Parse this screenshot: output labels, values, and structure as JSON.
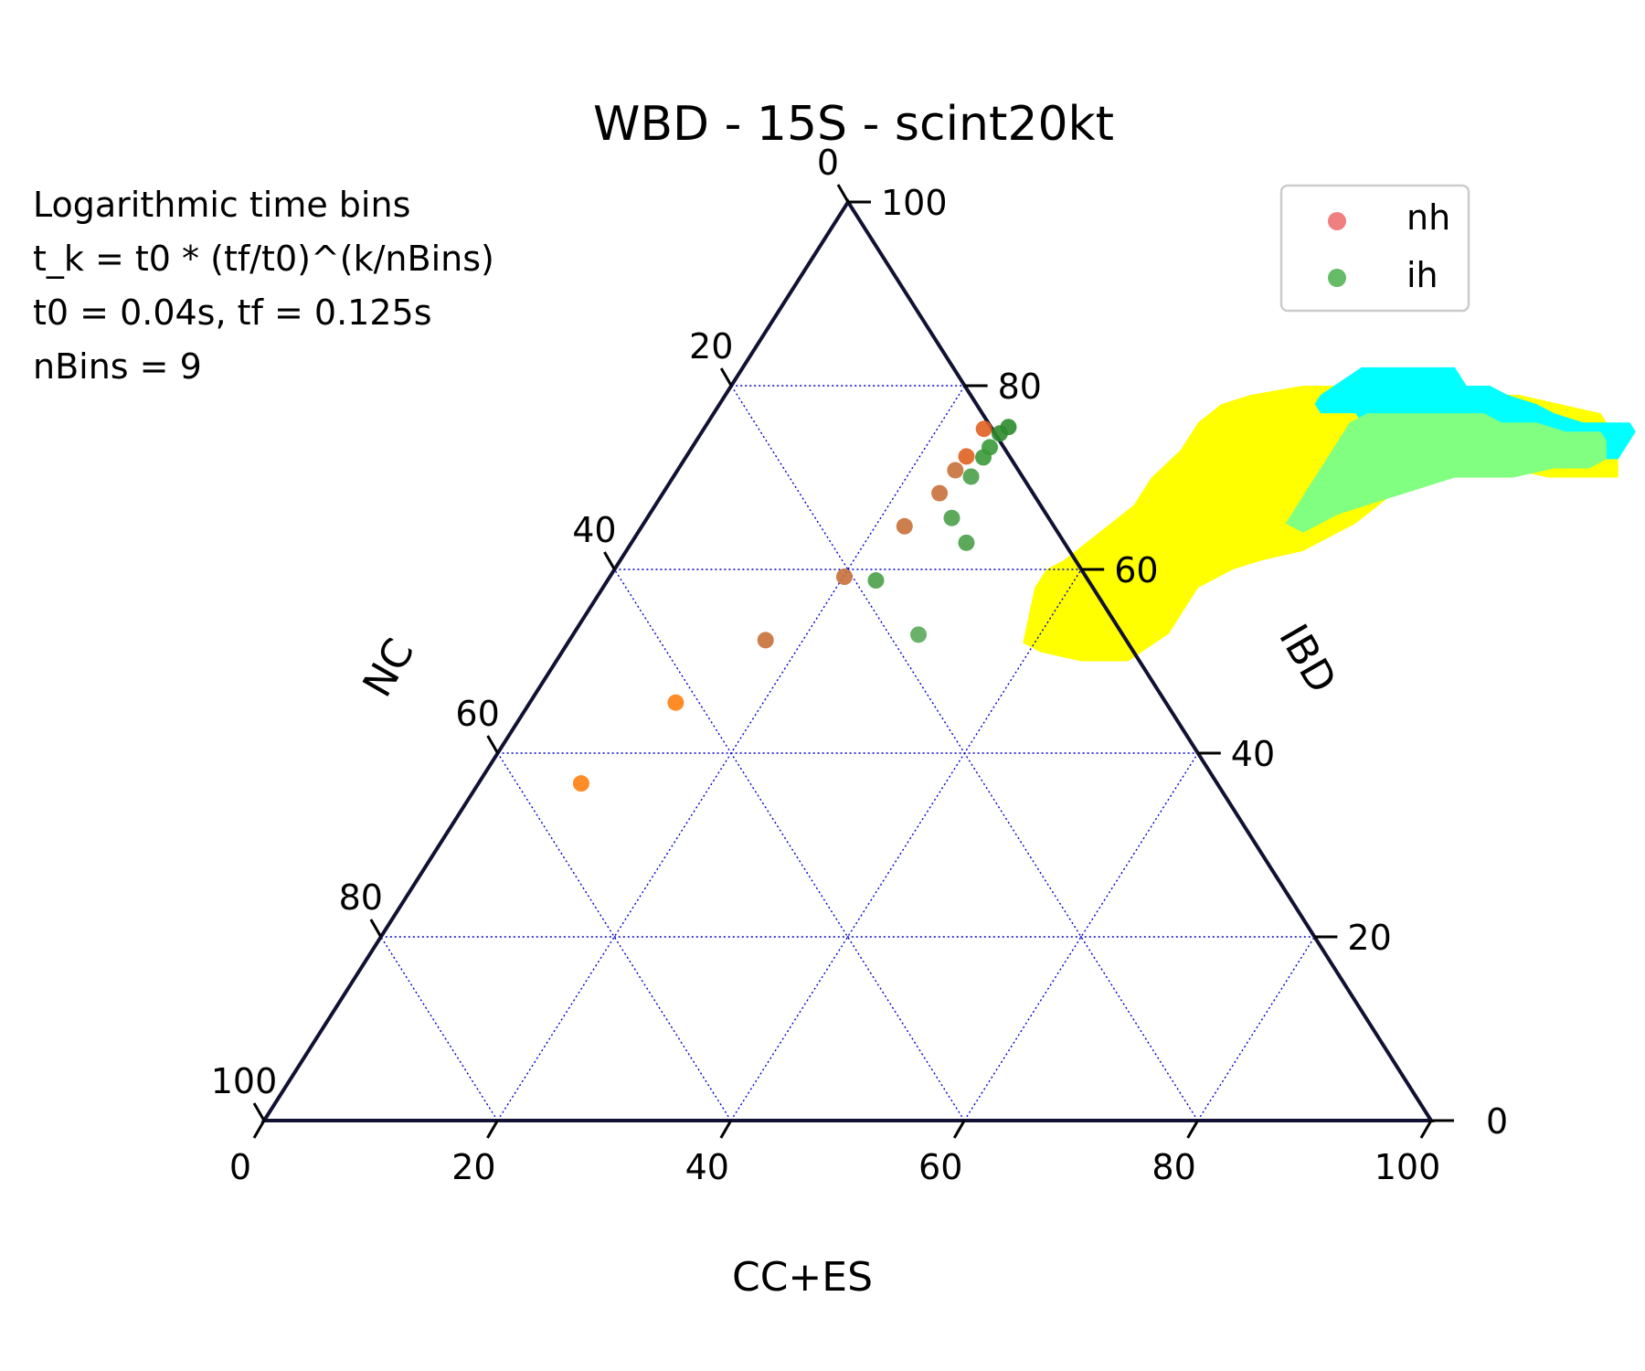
{
  "chart_data": {
    "type": "scatter",
    "subtype": "ternary",
    "title": "WBD - 15S - scint20kt",
    "annotation_lines": [
      "Logarithmic time bins",
      "t_k = t0 * (tf/t0)^(k/nBins)",
      "t0 = 0.04s, tf = 0.125s",
      "nBins = 9"
    ],
    "axes": {
      "bottom": {
        "label": "CC+ES",
        "ticks": [
          "0",
          "20",
          "40",
          "60",
          "80",
          "100"
        ]
      },
      "right": {
        "label": "IBD",
        "ticks": [
          "0",
          "20",
          "40",
          "60",
          "80",
          "100"
        ]
      },
      "left": {
        "label": "NC",
        "ticks": [
          "0",
          "20",
          "40",
          "60",
          "80",
          "100"
        ]
      }
    },
    "grid": true,
    "grid_color": "#0000cc",
    "legend": {
      "placement": "top-right",
      "entries": [
        {
          "name": "nh",
          "color": "#f08080"
        },
        {
          "name": "ih",
          "color": "#66bb66"
        }
      ]
    },
    "regions": [
      {
        "color": "#ffff00",
        "polygon": [
          [
            70,
            81
          ],
          [
            74,
            79
          ],
          [
            77,
            76
          ],
          [
            78,
            72
          ],
          [
            79,
            68
          ],
          [
            79,
            64
          ],
          [
            80,
            61
          ],
          [
            80,
            55
          ],
          [
            80,
            49
          ],
          [
            79,
            45
          ],
          [
            78,
            43
          ],
          [
            76,
            42
          ],
          [
            73,
            42
          ],
          [
            70,
            41
          ],
          [
            67,
            41
          ],
          [
            65,
            40
          ],
          [
            61,
            38
          ],
          [
            60,
            37
          ],
          [
            58,
            37
          ],
          [
            55,
            38
          ],
          [
            52,
            39
          ],
          [
            51,
            41
          ],
          [
            50,
            45
          ],
          [
            50,
            49
          ],
          [
            53,
            51
          ],
          [
            56,
            51
          ],
          [
            58,
            51
          ],
          [
            60,
            53
          ],
          [
            61,
            55
          ],
          [
            62,
            58
          ],
          [
            64,
            60
          ],
          [
            65,
            61
          ],
          [
            67,
            62
          ],
          [
            69,
            63
          ],
          [
            70,
            65
          ],
          [
            71,
            68
          ],
          [
            71,
            71
          ],
          [
            70,
            75
          ],
          [
            70,
            79
          ]
        ]
      },
      {
        "color": "#00ffff",
        "polygon": [
          [
            72,
            80
          ],
          [
            75,
            80
          ],
          [
            76,
            79
          ],
          [
            76,
            75
          ],
          [
            77,
            72
          ],
          [
            78,
            70
          ],
          [
            79,
            67
          ],
          [
            80,
            65
          ],
          [
            80,
            63
          ],
          [
            81,
            62
          ],
          [
            82,
            61
          ],
          [
            82,
            59
          ],
          [
            82,
            56
          ],
          [
            82,
            54
          ],
          [
            82,
            53
          ],
          [
            79,
            51
          ],
          [
            78,
            51
          ],
          [
            77,
            52
          ],
          [
            77,
            55
          ],
          [
            76,
            56
          ],
          [
            73,
            56
          ],
          [
            70,
            55
          ],
          [
            68,
            55
          ],
          [
            67,
            56
          ],
          [
            67,
            59
          ],
          [
            68,
            61
          ],
          [
            69,
            63
          ],
          [
            70,
            65
          ],
          [
            71,
            67
          ],
          [
            71,
            70
          ],
          [
            71,
            74
          ],
          [
            72,
            78
          ]
        ]
      },
      {
        "color": "#80ff80",
        "polygon": [
          [
            72,
            79
          ],
          [
            74,
            78
          ],
          [
            75,
            77
          ],
          [
            75,
            74
          ],
          [
            76,
            71
          ],
          [
            76,
            68
          ],
          [
            77,
            66
          ],
          [
            77,
            63
          ],
          [
            77,
            60
          ],
          [
            77,
            58
          ],
          [
            77,
            56
          ],
          [
            76,
            55
          ],
          [
            73,
            55
          ],
          [
            70,
            55
          ],
          [
            68,
            55
          ],
          [
            66,
            55
          ],
          [
            65,
            55
          ],
          [
            64,
            57
          ],
          [
            65,
            58
          ],
          [
            66,
            59
          ],
          [
            67,
            61
          ],
          [
            68,
            63
          ],
          [
            69,
            65
          ],
          [
            70,
            67
          ],
          [
            70,
            70
          ],
          [
            70,
            72
          ],
          [
            71,
            75
          ],
          [
            71,
            78
          ]
        ]
      }
    ],
    "series": [
      {
        "name": "nh",
        "color": "#f08080",
        "point_colors": [
          "#e06020",
          "#e06020",
          "#c8703a",
          "#c8703a",
          "#c8703a",
          "#c8703a",
          "#c8703a",
          "#ff7f0e",
          "#ff7f0e"
        ],
        "points": [
          {
            "cc_es": 24.0,
            "ibd": 75.3,
            "nc": 0.7
          },
          {
            "cc_es": 24.0,
            "ibd": 72.3,
            "nc": 3.7
          },
          {
            "cc_es": 23.8,
            "ibd": 70.8,
            "nc": 5.4
          },
          {
            "cc_es": 23.7,
            "ibd": 68.3,
            "nc": 8.0
          },
          {
            "cc_es": 22.5,
            "ibd": 64.7,
            "nc": 12.8
          },
          {
            "cc_es": 20.1,
            "ibd": 59.2,
            "nc": 20.7
          },
          {
            "cc_es": 16.8,
            "ibd": 52.3,
            "nc": 30.9
          },
          {
            "cc_es": 12.5,
            "ibd": 45.5,
            "nc": 42.0
          },
          {
            "cc_es": 8.8,
            "ibd": 36.7,
            "nc": 54.5
          }
        ]
      },
      {
        "name": "ih",
        "color": "#66bb66",
        "point_colors": [
          "#2e8b2e",
          "#2e8b2e",
          "#3a9a3a",
          "#3a9a3a",
          "#4aa04a",
          "#4aa04a",
          "#4aa04a",
          "#4aa04a",
          "#5aaa5a"
        ],
        "points": [
          {
            "cc_es": 26.0,
            "ibd": 75.5,
            "nc": -1.5
          },
          {
            "cc_es": 25.6,
            "ibd": 74.8,
            "nc": -0.4
          },
          {
            "cc_es": 25.5,
            "ibd": 73.3,
            "nc": 1.2
          },
          {
            "cc_es": 25.5,
            "ibd": 72.2,
            "nc": 2.3
          },
          {
            "cc_es": 25.5,
            "ibd": 70.1,
            "nc": 4.4
          },
          {
            "cc_es": 26.1,
            "ibd": 65.6,
            "nc": 8.3
          },
          {
            "cc_es": 28.7,
            "ibd": 62.9,
            "nc": 8.4
          },
          {
            "cc_es": 23.0,
            "ibd": 58.8,
            "nc": 18.2
          },
          {
            "cc_es": 29.6,
            "ibd": 52.9,
            "nc": 17.5
          }
        ]
      }
    ]
  }
}
